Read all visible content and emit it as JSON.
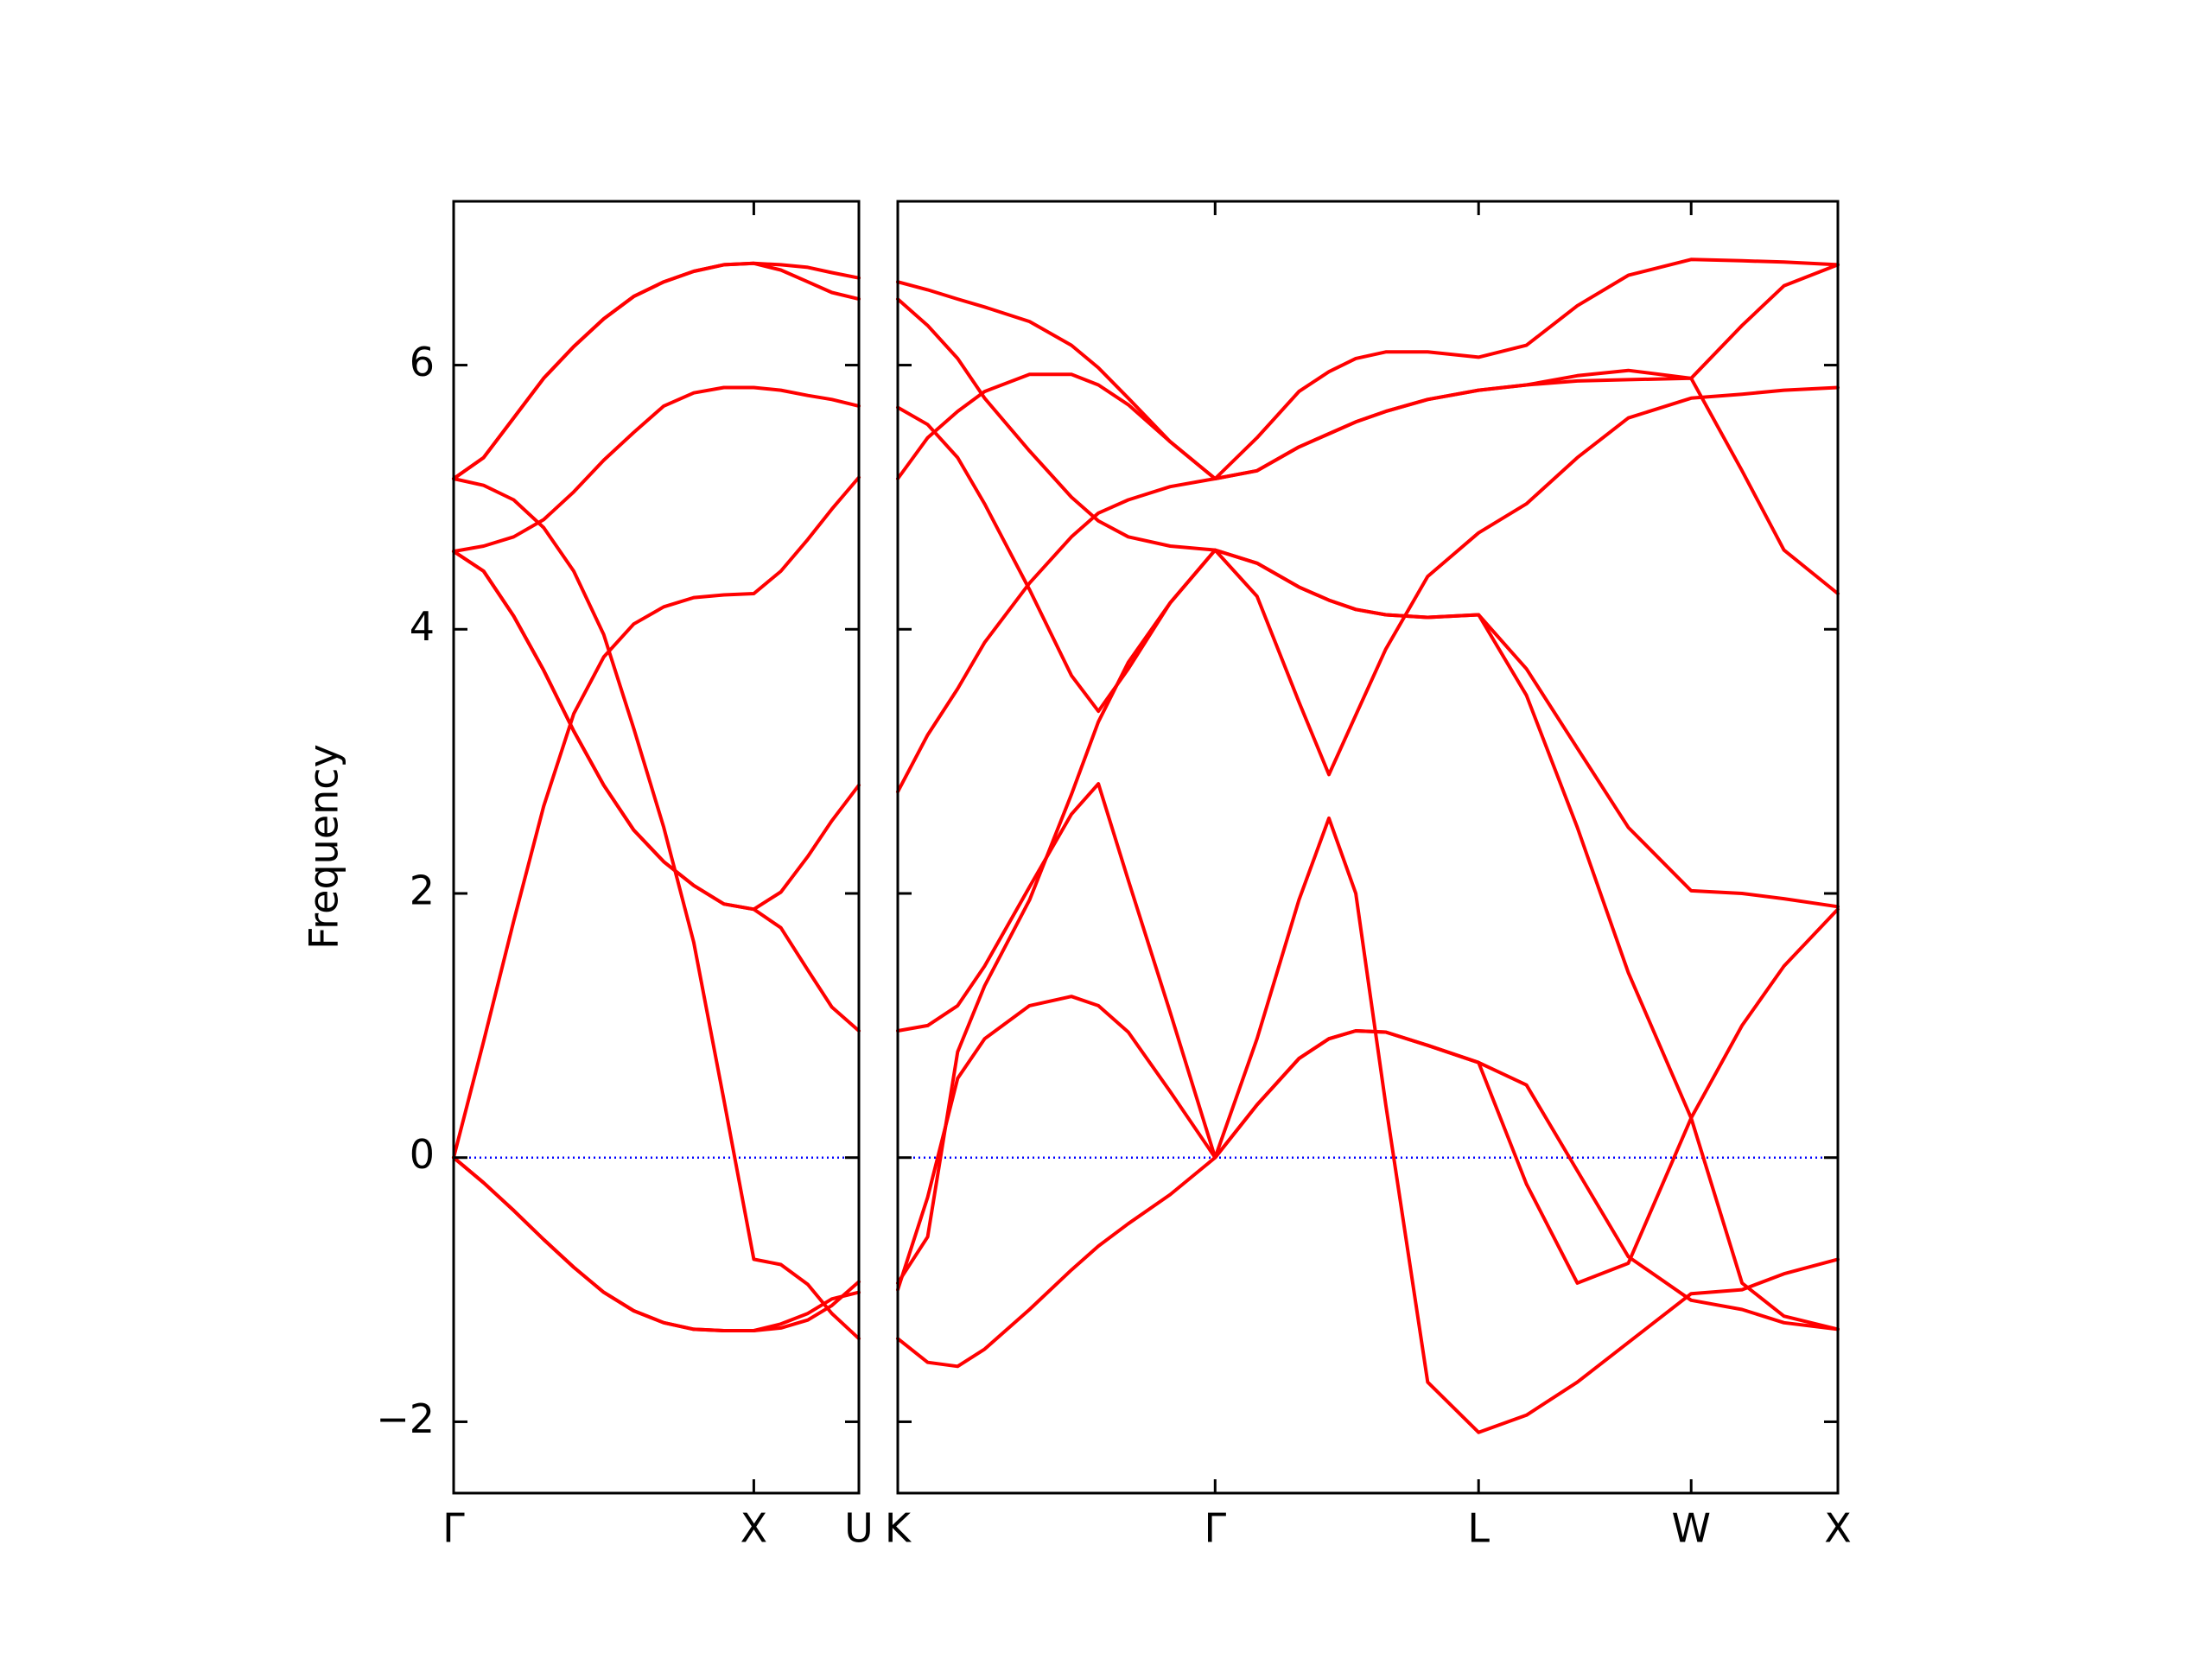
{
  "chart_data": [
    {
      "type": "line",
      "y_label": "Frequency",
      "color": "#ff0000",
      "xlim": [
        0,
        1.35
      ],
      "ylim": [
        -2.54,
        7.24
      ],
      "xticks": [
        {
          "value": 0,
          "label": "Γ"
        },
        {
          "value": 1.0,
          "label": "X"
        },
        {
          "value": 1.35,
          "label": "U"
        }
      ],
      "yticks": [
        {
          "value": -2,
          "label": "−2"
        },
        0,
        2,
        4,
        6
      ],
      "ytick_labels": true,
      "hline": {
        "value": 0,
        "color": "#0000ff"
      },
      "x": [
        0,
        0.1,
        0.2,
        0.3,
        0.4,
        0.5,
        0.6,
        0.7,
        0.8,
        0.9,
        1.0,
        1.09,
        1.18,
        1.26,
        1.35
      ],
      "series": [
        {
          "values": [
            5.14,
            5.3,
            5.6,
            5.9,
            6.14,
            6.35,
            6.52,
            6.63,
            6.71,
            6.76,
            6.77,
            6.76,
            6.74,
            6.7,
            6.66
          ]
        },
        {
          "values": [
            5.14,
            5.3,
            5.6,
            5.9,
            6.14,
            6.35,
            6.52,
            6.63,
            6.71,
            6.76,
            6.77,
            6.72,
            6.63,
            6.55,
            6.5
          ]
        },
        {
          "values": [
            4.59,
            4.63,
            4.7,
            4.83,
            5.04,
            5.28,
            5.49,
            5.69,
            5.79,
            5.83,
            5.83,
            5.81,
            5.77,
            5.74,
            5.69
          ]
        },
        {
          "values": [
            5.14,
            5.09,
            4.98,
            4.77,
            4.44,
            3.96,
            3.25,
            2.5,
            1.63,
            0.44,
            -0.77,
            -0.81,
            -0.96,
            -1.18,
            -1.37
          ]
        },
        {
          "values": [
            4.59,
            4.44,
            4.1,
            3.69,
            3.23,
            2.82,
            2.48,
            2.24,
            2.06,
            1.92,
            1.88,
            1.74,
            1.42,
            1.14,
            0.96
          ]
        },
        {
          "values": [
            4.59,
            4.44,
            4.1,
            3.69,
            3.23,
            2.82,
            2.48,
            2.24,
            2.06,
            1.92,
            1.88,
            2.01,
            2.28,
            2.55,
            2.82
          ]
        },
        {
          "values": [
            0,
            0.88,
            1.79,
            2.66,
            3.36,
            3.79,
            4.04,
            4.17,
            4.24,
            4.26,
            4.27,
            4.44,
            4.68,
            4.91,
            5.15
          ]
        },
        {
          "values": [
            0,
            -0.19,
            -0.4,
            -0.62,
            -0.83,
            -1.02,
            -1.16,
            -1.25,
            -1.3,
            -1.31,
            -1.31,
            -1.29,
            -1.23,
            -1.12,
            -0.94
          ]
        },
        {
          "values": [
            0,
            -0.19,
            -0.4,
            -0.62,
            -0.83,
            -1.02,
            -1.16,
            -1.25,
            -1.3,
            -1.31,
            -1.31,
            -1.26,
            -1.18,
            -1.07,
            -1.02
          ]
        }
      ]
    },
    {
      "type": "line",
      "color": "#ff0000",
      "xlim": [
        1.35,
        4.49
      ],
      "ylim": [
        -2.54,
        7.24
      ],
      "xticks": [
        {
          "value": 1.35,
          "label": "K"
        },
        {
          "value": 2.41,
          "label": "Γ"
        },
        {
          "value": 3.29,
          "label": "L"
        },
        {
          "value": 4.0,
          "label": "W"
        },
        {
          "value": 4.49,
          "label": "X"
        }
      ],
      "yticks": [
        -2,
        0,
        2,
        4,
        6
      ],
      "ytick_labels": false,
      "hline": {
        "value": 0,
        "color": "#0000ff"
      },
      "x": [
        1.35,
        1.45,
        1.55,
        1.64,
        1.79,
        1.93,
        2.02,
        2.12,
        2.26,
        2.41,
        2.55,
        2.69,
        2.79,
        2.88,
        2.98,
        3.12,
        3.29,
        3.45,
        3.62,
        3.79,
        4.0,
        4.17,
        4.31,
        4.49
      ],
      "series": [
        {
          "values": [
            6.63,
            6.57,
            6.5,
            6.44,
            6.33,
            6.15,
            5.98,
            5.75,
            5.42,
            5.14,
            5.45,
            5.8,
            5.95,
            6.05,
            6.1,
            6.1,
            6.06,
            6.15,
            6.45,
            6.68,
            6.8,
            6.79,
            6.78,
            6.76
          ]
        },
        {
          "values": [
            6.5,
            6.3,
            6.05,
            5.75,
            5.35,
            5.0,
            4.82,
            4.7,
            4.63,
            4.6,
            4.5,
            4.32,
            4.22,
            4.15,
            4.11,
            4.09,
            4.11,
            3.7,
            3.1,
            2.5,
            2.02,
            2.0,
            1.96,
            1.9
          ]
        },
        {
          "values": [
            5.14,
            5.45,
            5.65,
            5.8,
            5.93,
            5.93,
            5.85,
            5.7,
            5.42,
            5.14,
            5.2,
            5.38,
            5.48,
            5.57,
            5.65,
            5.74,
            5.81,
            5.85,
            5.92,
            5.96,
            5.9,
            6.3,
            6.6,
            6.76
          ]
        },
        {
          "values": [
            5.68,
            5.55,
            5.3,
            4.95,
            4.3,
            3.65,
            3.38,
            3.7,
            4.2,
            4.6,
            4.25,
            3.45,
            2.9,
            3.35,
            3.85,
            4.4,
            4.73,
            4.95,
            5.3,
            5.6,
            5.75,
            5.78,
            5.81,
            5.83
          ]
        },
        {
          "values": [
            2.77,
            3.2,
            3.55,
            3.9,
            4.35,
            4.7,
            4.88,
            4.98,
            5.08,
            5.14,
            5.2,
            5.38,
            5.48,
            5.57,
            5.65,
            5.74,
            5.81,
            5.85,
            5.88,
            5.89,
            5.9,
            5.2,
            4.6,
            4.27
          ]
        },
        {
          "values": [
            0.96,
            1.0,
            1.15,
            1.45,
            2.05,
            2.6,
            2.83,
            2.1,
            1.1,
            0,
            0.9,
            1.95,
            2.57,
            2.0,
            0.4,
            -1.7,
            -2.08,
            -1.95,
            -1.7,
            -1.4,
            -1.03,
            -1.0,
            -0.88,
            -0.77
          ]
        },
        {
          "values": [
            -0.95,
            -0.6,
            0.8,
            1.3,
            1.95,
            2.75,
            3.3,
            3.75,
            4.2,
            4.6,
            4.5,
            4.32,
            4.22,
            4.15,
            4.11,
            4.09,
            4.11,
            3.5,
            2.5,
            1.4,
            0.3,
            1.0,
            1.45,
            1.88
          ]
        },
        {
          "values": [
            -1.0,
            -0.3,
            0.6,
            0.9,
            1.15,
            1.22,
            1.15,
            0.95,
            0.5,
            0,
            0.4,
            0.75,
            0.9,
            0.96,
            0.95,
            0.85,
            0.72,
            -0.2,
            -0.95,
            -0.8,
            0.3,
            -0.95,
            -1.2,
            -1.3
          ]
        },
        {
          "values": [
            -1.37,
            -1.55,
            -1.58,
            -1.45,
            -1.15,
            -0.85,
            -0.67,
            -0.5,
            -0.28,
            0,
            0.4,
            0.75,
            0.9,
            0.96,
            0.95,
            0.85,
            0.72,
            0.55,
            -0.1,
            -0.75,
            -1.08,
            -1.15,
            -1.25,
            -1.3
          ]
        }
      ]
    }
  ]
}
